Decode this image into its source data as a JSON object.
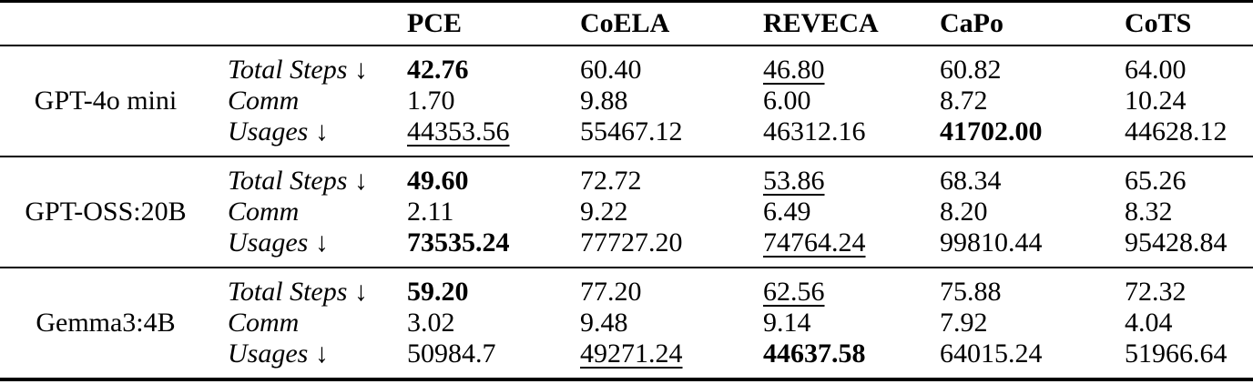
{
  "page": {
    "background": "#ffffff",
    "text_color": "#000000"
  },
  "table": {
    "columns": [
      "PCE",
      "CoELA",
      "REVECA",
      "CaPo",
      "CoTS"
    ],
    "blocks": [
      {
        "model": "GPT-4o mini",
        "rows": [
          {
            "metric": "Total Steps ↓",
            "values": [
              {
                "v": "42.76",
                "style": "bold"
              },
              {
                "v": "60.40",
                "style": ""
              },
              {
                "v": "46.80",
                "style": "underline"
              },
              {
                "v": "60.82",
                "style": ""
              },
              {
                "v": "64.00",
                "style": ""
              }
            ]
          },
          {
            "metric": "Comm",
            "values": [
              {
                "v": "1.70",
                "style": ""
              },
              {
                "v": "9.88",
                "style": ""
              },
              {
                "v": "6.00",
                "style": ""
              },
              {
                "v": "8.72",
                "style": ""
              },
              {
                "v": "10.24",
                "style": ""
              }
            ]
          },
          {
            "metric": "Usages ↓",
            "values": [
              {
                "v": "44353.56",
                "style": "underline"
              },
              {
                "v": "55467.12",
                "style": ""
              },
              {
                "v": "46312.16",
                "style": ""
              },
              {
                "v": "41702.00",
                "style": "bold"
              },
              {
                "v": "44628.12",
                "style": ""
              }
            ]
          }
        ]
      },
      {
        "model": "GPT-OSS:20B",
        "rows": [
          {
            "metric": "Total Steps ↓",
            "values": [
              {
                "v": "49.60",
                "style": "bold"
              },
              {
                "v": "72.72",
                "style": ""
              },
              {
                "v": "53.86",
                "style": "underline"
              },
              {
                "v": "68.34",
                "style": ""
              },
              {
                "v": "65.26",
                "style": ""
              }
            ]
          },
          {
            "metric": "Comm",
            "values": [
              {
                "v": "2.11",
                "style": ""
              },
              {
                "v": "9.22",
                "style": ""
              },
              {
                "v": "6.49",
                "style": ""
              },
              {
                "v": "8.20",
                "style": ""
              },
              {
                "v": "8.32",
                "style": ""
              }
            ]
          },
          {
            "metric": "Usages ↓",
            "values": [
              {
                "v": "73535.24",
                "style": "bold"
              },
              {
                "v": "77727.20",
                "style": ""
              },
              {
                "v": "74764.24",
                "style": "underline"
              },
              {
                "v": "99810.44",
                "style": ""
              },
              {
                "v": "95428.84",
                "style": ""
              }
            ]
          }
        ]
      },
      {
        "model": "Gemma3:4B",
        "rows": [
          {
            "metric": "Total Steps ↓",
            "values": [
              {
                "v": "59.20",
                "style": "bold"
              },
              {
                "v": "77.20",
                "style": ""
              },
              {
                "v": "62.56",
                "style": "underline"
              },
              {
                "v": "75.88",
                "style": ""
              },
              {
                "v": "72.32",
                "style": ""
              }
            ]
          },
          {
            "metric": "Comm",
            "values": [
              {
                "v": "3.02",
                "style": ""
              },
              {
                "v": "9.48",
                "style": ""
              },
              {
                "v": "9.14",
                "style": ""
              },
              {
                "v": "7.92",
                "style": ""
              },
              {
                "v": "4.04",
                "style": ""
              }
            ]
          },
          {
            "metric": "Usages ↓",
            "values": [
              {
                "v": "50984.7",
                "style": ""
              },
              {
                "v": "49271.24",
                "style": "underline"
              },
              {
                "v": "44637.58",
                "style": "bold"
              },
              {
                "v": "64015.24",
                "style": ""
              },
              {
                "v": "51966.64",
                "style": ""
              }
            ]
          }
        ]
      }
    ]
  }
}
